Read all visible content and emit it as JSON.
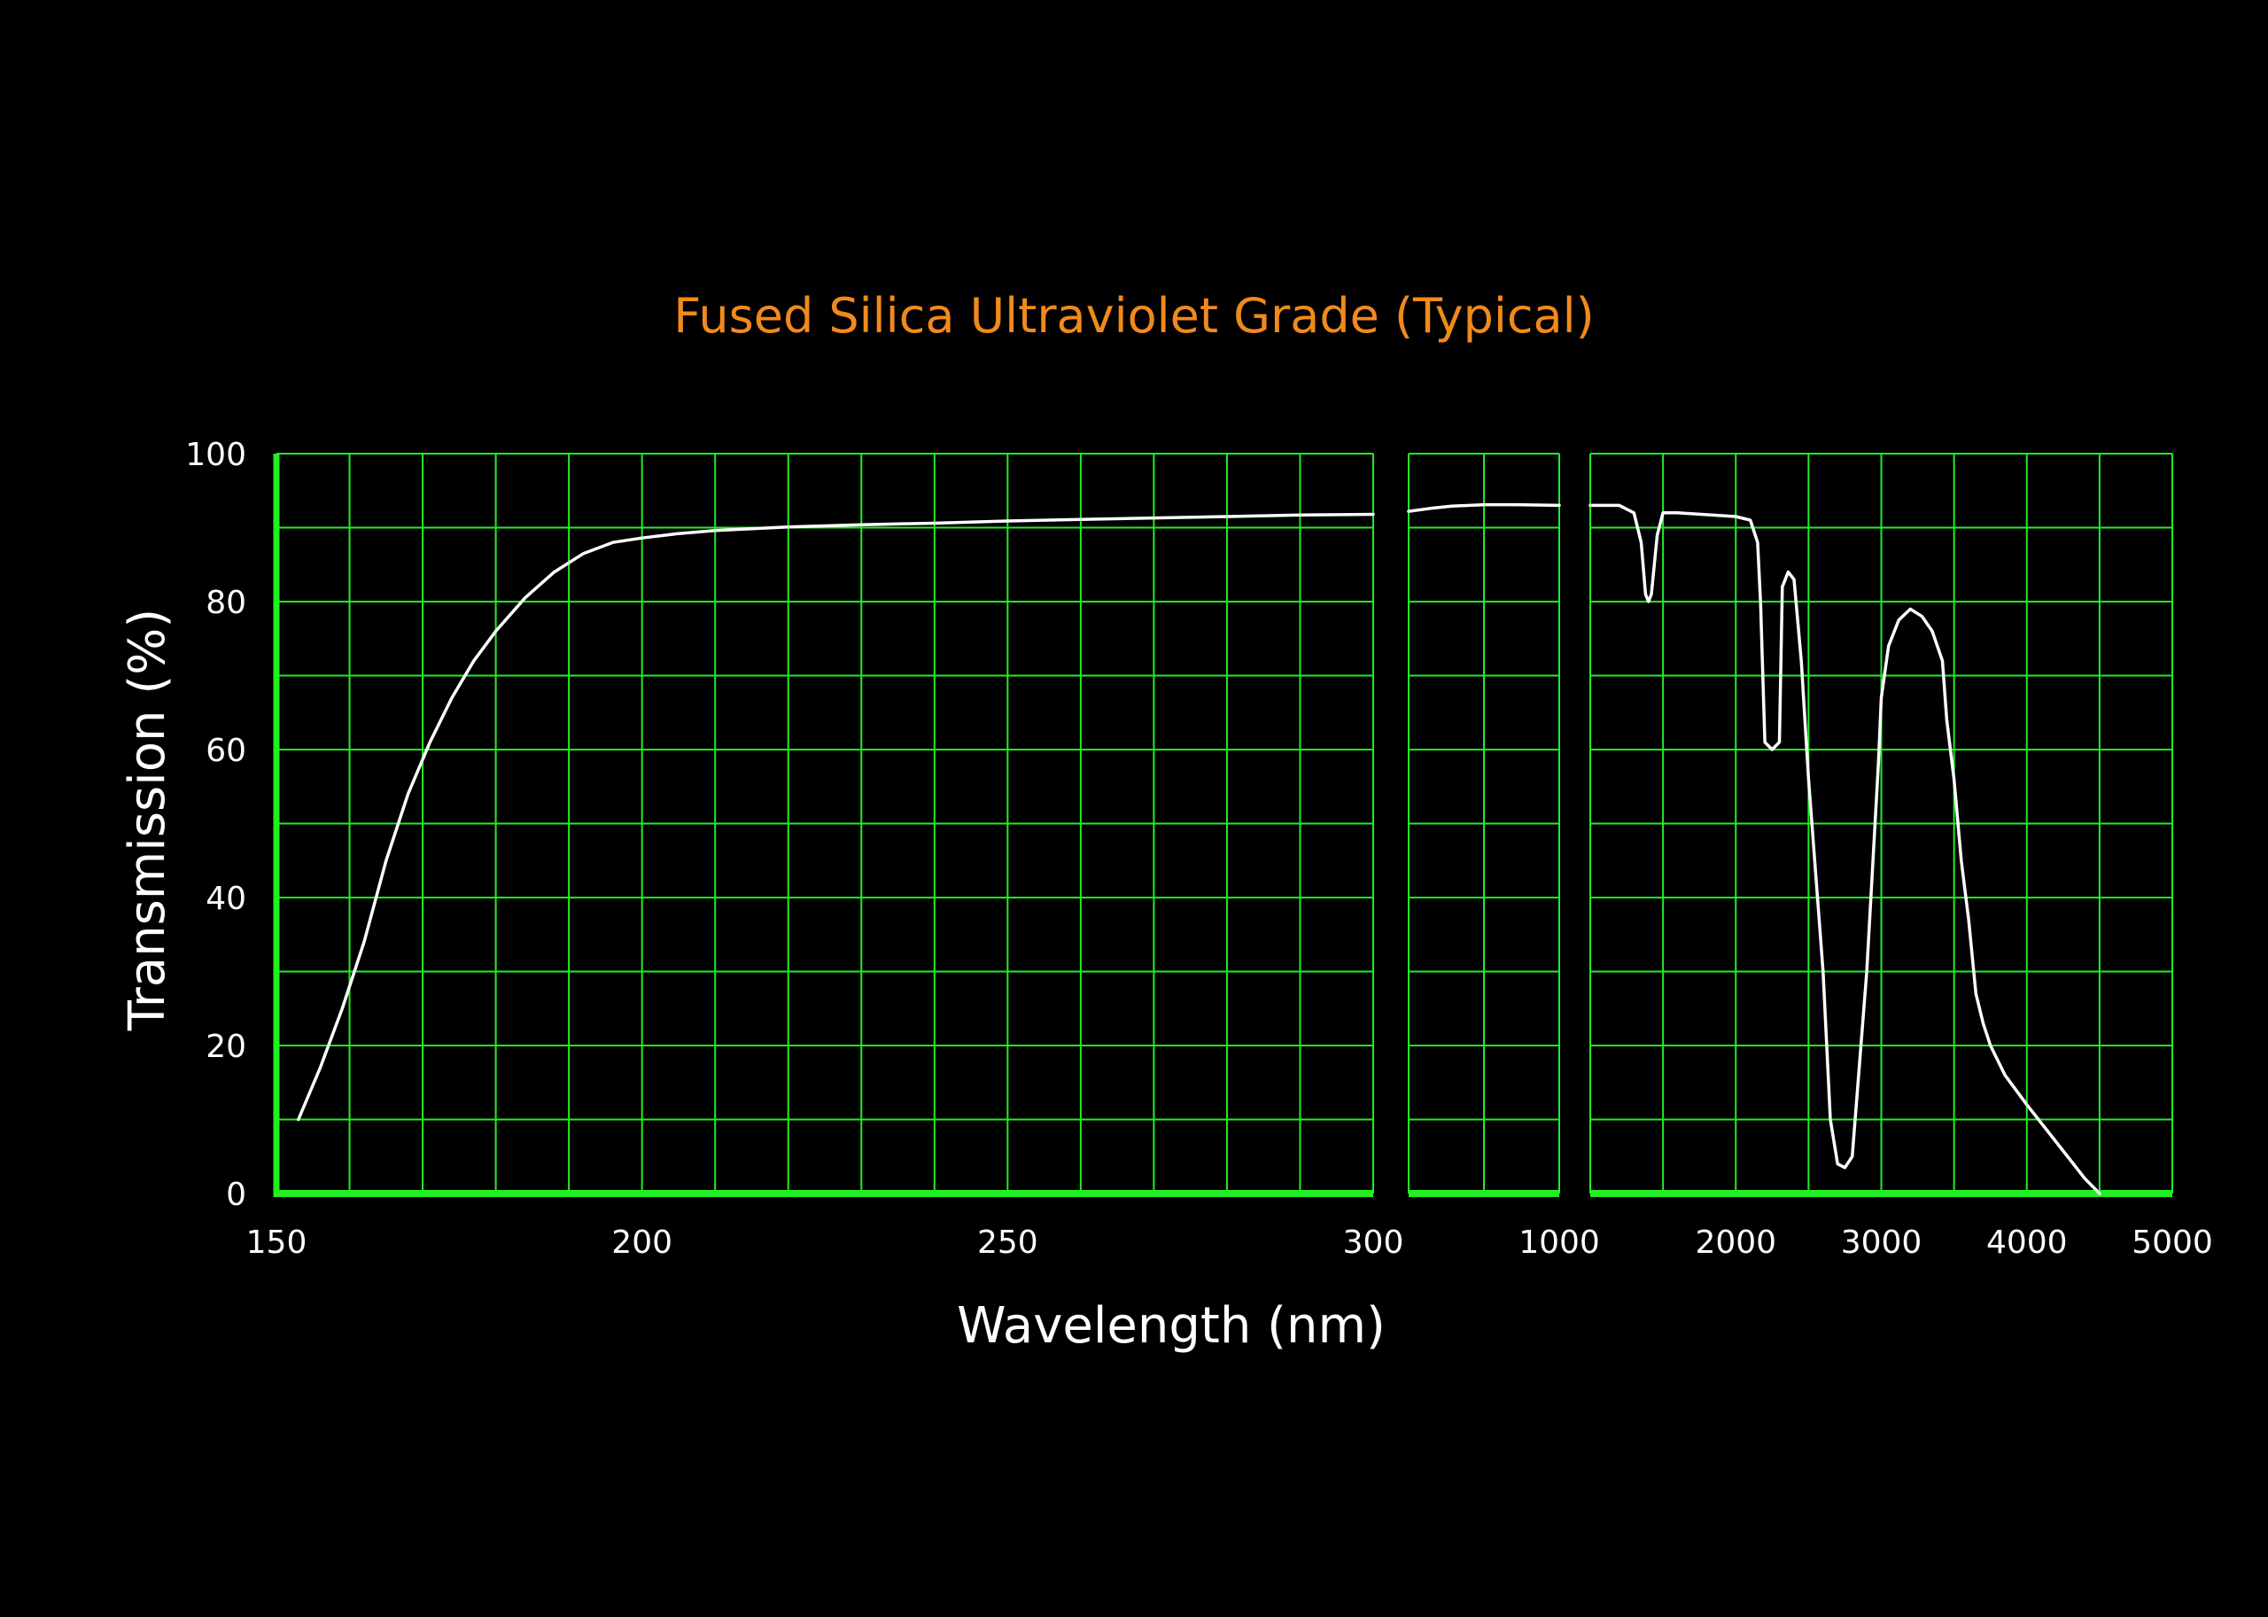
{
  "chart_data": {
    "type": "line",
    "title": "Fused Silica Ultraviolet Grade (Typical)",
    "xlabel": "Wavelength (nm)",
    "ylabel": "Transmission (%)",
    "ylim": [
      0,
      100
    ],
    "yticks": [
      "0",
      "20",
      "40",
      "60",
      "80",
      "100"
    ],
    "grid": true,
    "colors": {
      "background": "#000000",
      "grid": "#22ee22",
      "axis": "#22ee22",
      "title": "#f08a1c",
      "text": "#ffffff",
      "line": "#ffffff"
    },
    "panels": [
      {
        "xlim": [
          150,
          300
        ],
        "xticks": [
          {
            "value": 150,
            "label": "150"
          },
          {
            "value": 200,
            "label": "200"
          },
          {
            "value": 250,
            "label": "250"
          },
          {
            "value": 300,
            "label": "300"
          }
        ],
        "gridlines_x": [
          150,
          160,
          170,
          180,
          190,
          200,
          210,
          220,
          230,
          240,
          250,
          260,
          270,
          280,
          290,
          300
        ],
        "points": [
          [
            153,
            10
          ],
          [
            156,
            17
          ],
          [
            159,
            25
          ],
          [
            162,
            34
          ],
          [
            165,
            45
          ],
          [
            168,
            54
          ],
          [
            171,
            61
          ],
          [
            174,
            67
          ],
          [
            177,
            72
          ],
          [
            180,
            76
          ],
          [
            184,
            80.5
          ],
          [
            188,
            84
          ],
          [
            192,
            86.5
          ],
          [
            196,
            88
          ],
          [
            200,
            88.6
          ],
          [
            205,
            89.2
          ],
          [
            210,
            89.6
          ],
          [
            220,
            90.1
          ],
          [
            230,
            90.4
          ],
          [
            240,
            90.6
          ],
          [
            250,
            90.9
          ],
          [
            260,
            91.1
          ],
          [
            270,
            91.3
          ],
          [
            280,
            91.5
          ],
          [
            290,
            91.7
          ],
          [
            300,
            91.8
          ]
        ]
      },
      {
        "xlim": [
          300,
          1000
        ],
        "xticks": [
          {
            "value": 1000,
            "label": "1000"
          }
        ],
        "gridlines_x": [
          300,
          650,
          1000
        ],
        "points": [
          [
            300,
            92.2
          ],
          [
            400,
            92.6
          ],
          [
            500,
            92.9
          ],
          [
            650,
            93.1
          ],
          [
            800,
            93.1
          ],
          [
            1000,
            93
          ]
        ]
      },
      {
        "xlim": [
          1000,
          5000
        ],
        "xticks": [
          {
            "value": 2000,
            "label": "2000"
          },
          {
            "value": 3000,
            "label": "3000"
          },
          {
            "value": 4000,
            "label": "4000"
          },
          {
            "value": 5000,
            "label": "5000"
          }
        ],
        "gridlines_x": [
          1000,
          1500,
          2000,
          2500,
          3000,
          3500,
          4000,
          4500,
          5000
        ],
        "points": [
          [
            1000,
            93
          ],
          [
            1200,
            93
          ],
          [
            1300,
            92
          ],
          [
            1350,
            88
          ],
          [
            1380,
            81
          ],
          [
            1400,
            80
          ],
          [
            1420,
            81
          ],
          [
            1460,
            89
          ],
          [
            1500,
            92
          ],
          [
            1600,
            92
          ],
          [
            2000,
            91.5
          ],
          [
            2100,
            91
          ],
          [
            2150,
            88
          ],
          [
            2170,
            80
          ],
          [
            2200,
            61
          ],
          [
            2250,
            60
          ],
          [
            2300,
            61
          ],
          [
            2320,
            82
          ],
          [
            2360,
            84
          ],
          [
            2400,
            83
          ],
          [
            2450,
            72
          ],
          [
            2500,
            56
          ],
          [
            2600,
            30
          ],
          [
            2650,
            10
          ],
          [
            2700,
            4
          ],
          [
            2750,
            3.5
          ],
          [
            2800,
            5
          ],
          [
            2900,
            30
          ],
          [
            2980,
            58
          ],
          [
            3000,
            67
          ],
          [
            3050,
            74
          ],
          [
            3120,
            77.5
          ],
          [
            3200,
            79
          ],
          [
            3280,
            78
          ],
          [
            3350,
            76
          ],
          [
            3420,
            72
          ],
          [
            3450,
            64
          ],
          [
            3500,
            56
          ],
          [
            3550,
            45
          ],
          [
            3600,
            37
          ],
          [
            3650,
            27
          ],
          [
            3700,
            23
          ],
          [
            3750,
            20
          ],
          [
            3850,
            16
          ],
          [
            4000,
            12
          ],
          [
            4200,
            7
          ],
          [
            4400,
            2
          ],
          [
            4500,
            0
          ]
        ]
      }
    ]
  }
}
